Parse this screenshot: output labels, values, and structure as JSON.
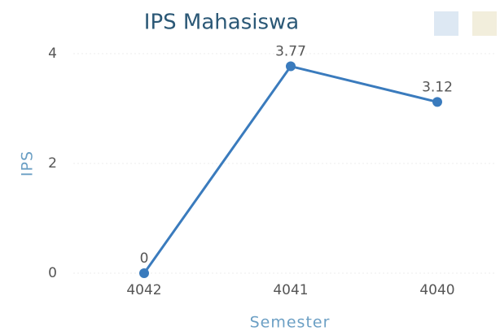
{
  "chart_data": {
    "type": "line",
    "title": "IPS Mahasiswa",
    "x_label": "Semester",
    "y_label": "IPS",
    "categories": [
      "4042",
      "4041",
      "4040"
    ],
    "series": [
      {
        "name": "IPS",
        "color": "#3a7bbd",
        "values": [
          0,
          3.77,
          3.12
        ]
      }
    ],
    "ylim": [
      0,
      4
    ],
    "yticks": [
      0,
      2,
      4
    ],
    "grid": true
  }
}
